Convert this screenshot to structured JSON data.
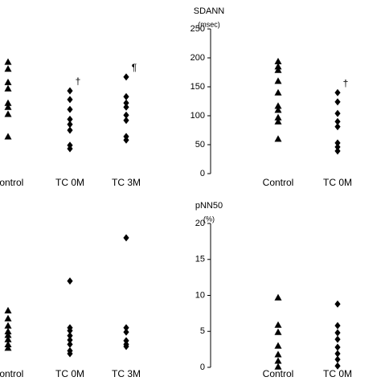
{
  "chart_data": [
    {
      "type": "strip",
      "categories": [
        "Control",
        "TC 0M",
        "TC 3M"
      ],
      "markers": [
        "triangle",
        "diamond",
        "diamond"
      ],
      "color": "#000000",
      "ylim": [
        0,
        250
      ],
      "values": [
        [
          193,
          181,
          158,
          147,
          122,
          115,
          103,
          64
        ],
        [
          143,
          128,
          111,
          94,
          85,
          75,
          49,
          43
        ],
        [
          167,
          133,
          122,
          115,
          101,
          92,
          64,
          58
        ]
      ],
      "annotations": [
        {
          "category": 1,
          "text": "†"
        },
        {
          "category": 2,
          "text": "¶"
        }
      ]
    },
    {
      "type": "strip",
      "ylabel": "SDANN",
      "yunit": "(msec)",
      "categories": [
        "Control",
        "TC 0M"
      ],
      "markers": [
        "triangle",
        "diamond"
      ],
      "color": "#000000",
      "ylim": [
        0,
        250
      ],
      "yticks": [
        0,
        50,
        100,
        150,
        200,
        250
      ],
      "values": [
        [
          194,
          185,
          179,
          160,
          140,
          117,
          110,
          97,
          90,
          60
        ],
        [
          140,
          124,
          104,
          90,
          81,
          53,
          46,
          39
        ]
      ],
      "annotations": [
        {
          "category": 1,
          "text": "†"
        }
      ]
    },
    {
      "type": "strip",
      "categories": [
        "Control",
        "TC 0M",
        "TC 3M"
      ],
      "markers": [
        "triangle",
        "diamond",
        "diamond"
      ],
      "color": "#000000",
      "ylim": [
        0,
        20
      ],
      "values": [
        [
          7.9,
          6.8,
          5.8,
          5.0,
          4.5,
          3.9,
          3.2,
          2.7
        ],
        [
          12.0,
          5.5,
          5.1,
          4.4,
          3.8,
          3.2,
          2.3,
          1.9
        ],
        [
          18.0,
          5.5,
          4.9,
          3.7,
          3.2,
          2.9
        ]
      ]
    },
    {
      "type": "strip",
      "ylabel": "pNN50",
      "yunit": "(%)",
      "categories": [
        "Control",
        "TC 0M"
      ],
      "markers": [
        "triangle",
        "diamond"
      ],
      "color": "#000000",
      "ylim": [
        0,
        20
      ],
      "yticks": [
        0,
        5,
        10,
        15,
        20
      ],
      "values": [
        [
          9.7,
          5.9,
          4.9,
          3.0,
          1.8,
          0.9,
          0.1
        ],
        [
          8.8,
          5.8,
          4.8,
          3.9,
          2.8,
          1.9,
          1.1,
          0.2
        ]
      ]
    }
  ]
}
